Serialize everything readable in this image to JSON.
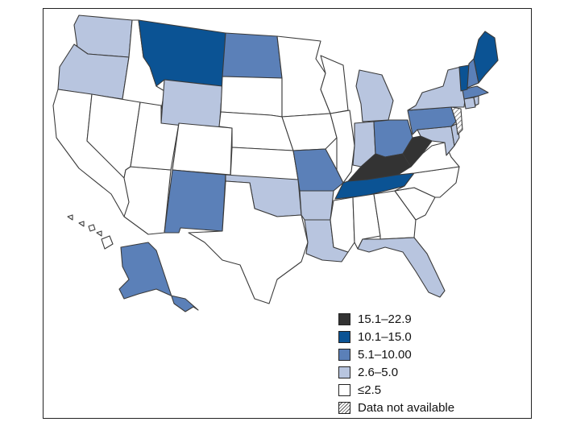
{
  "colors": {
    "c1": "#333333",
    "c2": "#0b5394",
    "c3": "#5b80b8",
    "c4": "#b8c5df",
    "c5": "#ffffff",
    "outline": "#3a3a3a"
  },
  "legend": [
    {
      "key": "c1",
      "label": "15.1–22.9"
    },
    {
      "key": "c2",
      "label": "10.1–15.0"
    },
    {
      "key": "c3",
      "label": "5.1–10.00"
    },
    {
      "key": "c4",
      "label": "2.6–5.0"
    },
    {
      "key": "c5",
      "label": "≤2.5"
    },
    {
      "key": "na",
      "label": "Data not available"
    }
  ],
  "states": {
    "WA": "c4",
    "OR": "c4",
    "CA": "c5",
    "ID": "c5",
    "NV": "c5",
    "AZ": "c5",
    "UT": "c5",
    "MT": "c2",
    "WY": "c4",
    "CO": "c5",
    "NM": "c3",
    "ND": "c3",
    "SD": "c5",
    "NE": "c5",
    "KS": "c5",
    "OK": "c4",
    "TX": "c5",
    "MN": "c5",
    "IA": "c5",
    "MO": "c3",
    "AR": "c4",
    "LA": "c4",
    "WI": "c5",
    "IL": "c5",
    "MI": "c4",
    "IN": "c4",
    "OH": "c3",
    "KY": "c1",
    "TN": "c2",
    "MS": "c5",
    "AL": "c5",
    "GA": "c5",
    "FL": "c4",
    "SC": "c5",
    "NC": "c5",
    "VA": "c5",
    "WV": "c1",
    "MD": "c4",
    "DE": "c4",
    "PA": "c3",
    "NJ": "na",
    "NY": "c4",
    "CT": "c4",
    "RI": "c4",
    "MA": "c3",
    "VT": "c2",
    "NH": "c3",
    "ME": "c2",
    "AK": "c3",
    "HI": "c5"
  }
}
